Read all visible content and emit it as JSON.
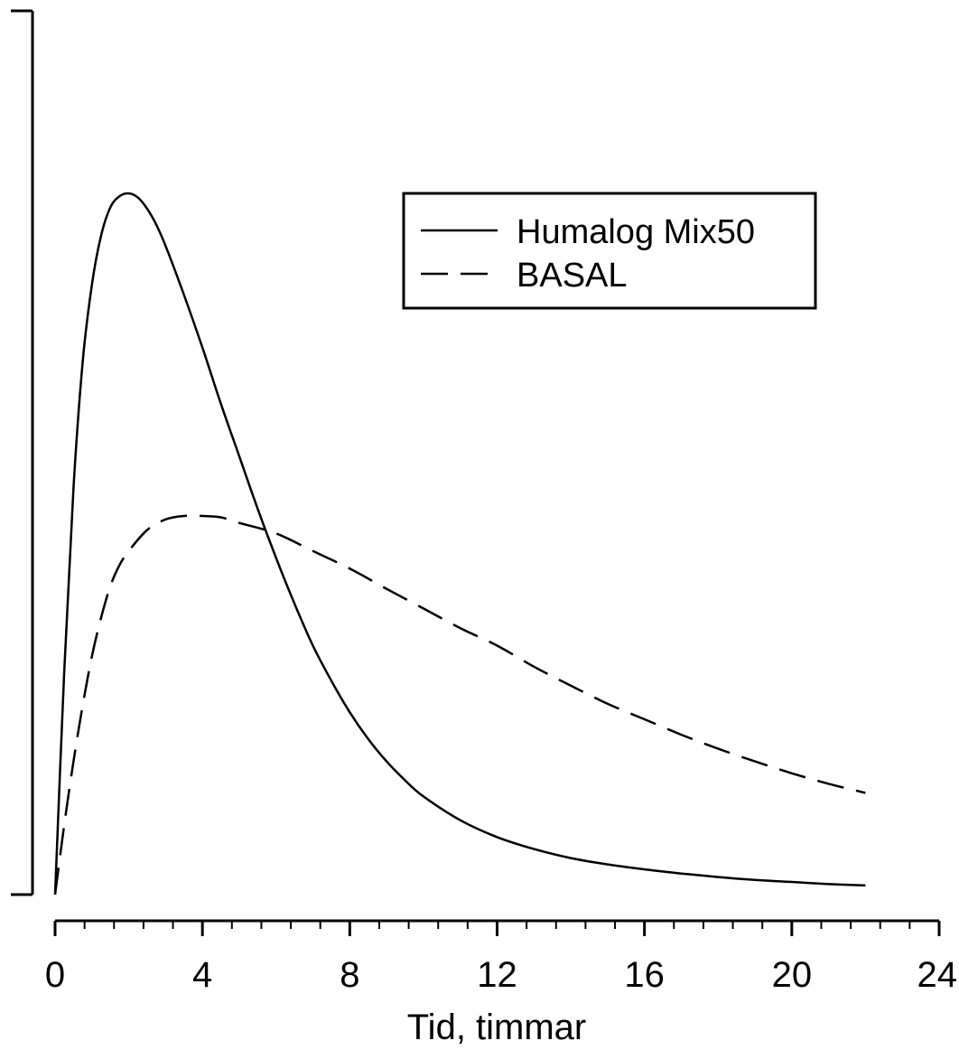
{
  "chart_data": {
    "type": "line",
    "title": "",
    "xlabel": "Tid, timmar",
    "ylabel": "",
    "xlim": [
      0,
      24
    ],
    "ylim": [
      0,
      100
    ],
    "x_ticks": [
      0,
      4,
      8,
      12,
      16,
      20,
      24
    ],
    "x_tick_labels": [
      "0",
      "4",
      "8",
      "12",
      "16",
      "20",
      "24"
    ],
    "x_minor_tick_step": 0.8,
    "grid": false,
    "legend_position": "top-right",
    "series": [
      {
        "name": "Humalog Mix50",
        "style": "solid",
        "color": "#000000",
        "x": [
          0,
          0.25,
          0.5,
          0.75,
          1,
          1.25,
          1.5,
          1.75,
          2,
          2.25,
          2.5,
          2.75,
          3,
          3.5,
          4,
          4.5,
          5,
          5.5,
          6,
          6.5,
          7,
          7.5,
          8,
          8.5,
          9,
          9.5,
          10,
          11,
          12,
          13,
          14,
          15,
          16,
          17,
          18,
          19,
          20,
          21,
          22
        ],
        "y": [
          0,
          32,
          58,
          76,
          87,
          94,
          98,
          99.6,
          100,
          99.4,
          97.8,
          95.5,
          92.5,
          85.5,
          78,
          70,
          62.5,
          55,
          48,
          41.5,
          35.5,
          30.5,
          26,
          22.2,
          19,
          16.3,
          14,
          10.6,
          8.2,
          6.5,
          5.2,
          4.3,
          3.6,
          3.0,
          2.5,
          2.1,
          1.8,
          1.5,
          1.3
        ]
      },
      {
        "name": "BASAL",
        "style": "dashed",
        "color": "#000000",
        "x": [
          0,
          0.25,
          0.5,
          0.75,
          1,
          1.25,
          1.5,
          1.75,
          2,
          2.5,
          3,
          3.5,
          4,
          4.5,
          5,
          6,
          7,
          8,
          9,
          10,
          11,
          12,
          13,
          14,
          15,
          16,
          17,
          18,
          19,
          20,
          21,
          22
        ],
        "y": [
          0,
          10,
          19,
          27,
          34,
          39.5,
          44,
          47,
          49,
          52,
          53.5,
          54,
          54,
          53.8,
          53,
          51.5,
          49,
          46.5,
          43.6,
          40.8,
          38,
          35.5,
          32.5,
          29.8,
          27.2,
          25,
          22.8,
          20.8,
          19,
          17.3,
          15.8,
          14.5
        ]
      }
    ]
  }
}
